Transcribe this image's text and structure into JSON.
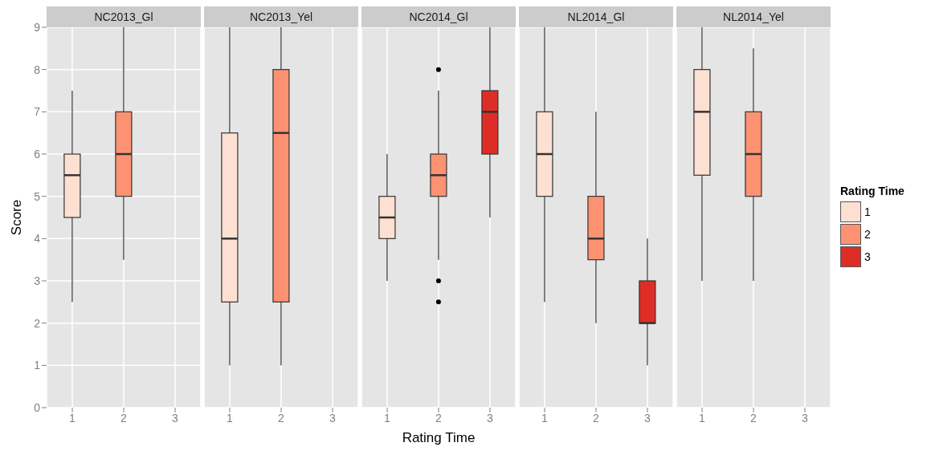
{
  "chart_data": [
    {
      "type": "box",
      "title": "NC2013_Gl",
      "ylabel": "Score",
      "categories": [
        "1",
        "2",
        "3"
      ],
      "ylim": [
        0,
        9
      ],
      "yticks": [
        0,
        1,
        2,
        3,
        4,
        5,
        6,
        7,
        8,
        9
      ],
      "grid": true,
      "tick_labels": true,
      "legend": "right",
      "legend_title": "Rating Time",
      "series": [
        {
          "name": "1",
          "color": "#fee0d2",
          "boxes": [
            {
              "low": 2.5,
              "q1": 4.5,
              "median": 5.5,
              "q3": 6,
              "high": 7.5
            },
            null,
            null
          ]
        },
        {
          "name": "2",
          "color": "#fc9272",
          "boxes": [
            null,
            {
              "low": 3.5,
              "q1": 5,
              "median": 6,
              "q3": 7,
              "high": 9
            },
            null
          ]
        },
        {
          "name": "3",
          "color": "#de2d26",
          "boxes": [
            null,
            null,
            null
          ]
        }
      ]
    },
    {
      "type": "box",
      "title": "NC2013_Yel",
      "categories": [
        "1",
        "2",
        "3"
      ],
      "ylim": [
        0,
        9
      ],
      "grid": true,
      "tick_labels": "x",
      "series": [
        {
          "color": "#fee0d2",
          "boxes": [
            {
              "low": 1,
              "q1": 2.5,
              "median": 4,
              "q3": 6.5,
              "high": 9
            },
            null,
            null
          ]
        },
        {
          "color": "#fc9272",
          "boxes": [
            null,
            {
              "low": 1,
              "q1": 2.5,
              "median": 6.5,
              "q3": 8,
              "high": 9
            },
            null
          ]
        }
      ]
    },
    {
      "type": "box",
      "title": "NC2014_Gl",
      "xlabel": "Rating Time",
      "categories": [
        "1",
        "2",
        "3"
      ],
      "ylim": [
        0,
        9
      ],
      "grid": true,
      "tick_labels": "x",
      "series": [
        {
          "color": "#fee0d2",
          "boxes": [
            {
              "low": 3,
              "q1": 4,
              "median": 4.5,
              "q3": 5,
              "high": 6
            },
            null,
            null
          ]
        },
        {
          "color": "#fc9272",
          "boxes": [
            null,
            {
              "low": 3.5,
              "q1": 5,
              "median": 5.5,
              "q3": 6,
              "high": 7.5,
              "outliers": [
                8,
                3,
                2.5
              ]
            },
            null
          ]
        },
        {
          "color": "#de2d26",
          "boxes": [
            null,
            null,
            {
              "low": 4.5,
              "q1": 6,
              "median": 7,
              "q3": 7.5,
              "high": 9
            }
          ]
        }
      ]
    },
    {
      "type": "box",
      "title": "NL2014_Gl",
      "categories": [
        "1",
        "2",
        "3"
      ],
      "ylim": [
        0,
        9
      ],
      "grid": true,
      "tick_labels": "x",
      "series": [
        {
          "color": "#fee0d2",
          "boxes": [
            {
              "low": 2.5,
              "q1": 5,
              "median": 6,
              "q3": 7,
              "high": 9
            },
            null,
            null
          ]
        },
        {
          "color": "#fc9272",
          "boxes": [
            null,
            {
              "low": 2,
              "q1": 3.5,
              "median": 4,
              "q3": 5,
              "high": 7
            },
            null
          ]
        },
        {
          "color": "#de2d26",
          "boxes": [
            null,
            null,
            {
              "low": 1,
              "q1": 2,
              "median": 2,
              "q3": 3,
              "high": 4
            }
          ]
        }
      ]
    },
    {
      "type": "box",
      "title": "NL2014_Yel",
      "categories": [
        "1",
        "2",
        "3"
      ],
      "ylim": [
        0,
        9
      ],
      "grid": true,
      "tick_labels": "x",
      "series": [
        {
          "color": "#fee0d2",
          "boxes": [
            {
              "low": 3,
              "q1": 5.5,
              "median": 7,
              "q3": 8,
              "high": 9
            },
            null,
            null
          ]
        },
        {
          "color": "#fc9272",
          "boxes": [
            null,
            {
              "low": 3,
              "q1": 5,
              "median": 6,
              "q3": 7,
              "high": 8.5
            },
            null
          ]
        }
      ]
    }
  ]
}
